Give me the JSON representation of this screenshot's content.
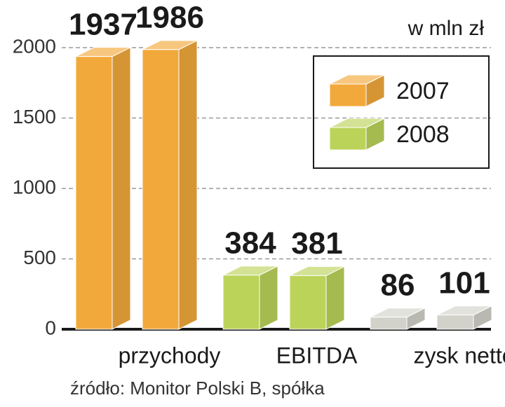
{
  "chart_data": {
    "type": "bar3d",
    "subtitle": "w mln zł",
    "source": "źródło: Monitor Polski B, spółka",
    "categories": [
      "przychody",
      "EBITDA",
      "zysk netto"
    ],
    "bar_colors": [
      "#f2a93b",
      "#bcd35a",
      "#d2d2ca"
    ],
    "series": [
      {
        "name": "2007",
        "color": "#f2a93b",
        "values": [
          1937,
          384,
          86
        ]
      },
      {
        "name": "2008",
        "color": "#bcd35a",
        "values": [
          1986,
          381,
          101
        ]
      }
    ],
    "ylim": [
      0,
      2000
    ],
    "yticks": [
      0,
      500,
      1000,
      1500,
      2000
    ],
    "grid": true,
    "legend": "upper right"
  }
}
